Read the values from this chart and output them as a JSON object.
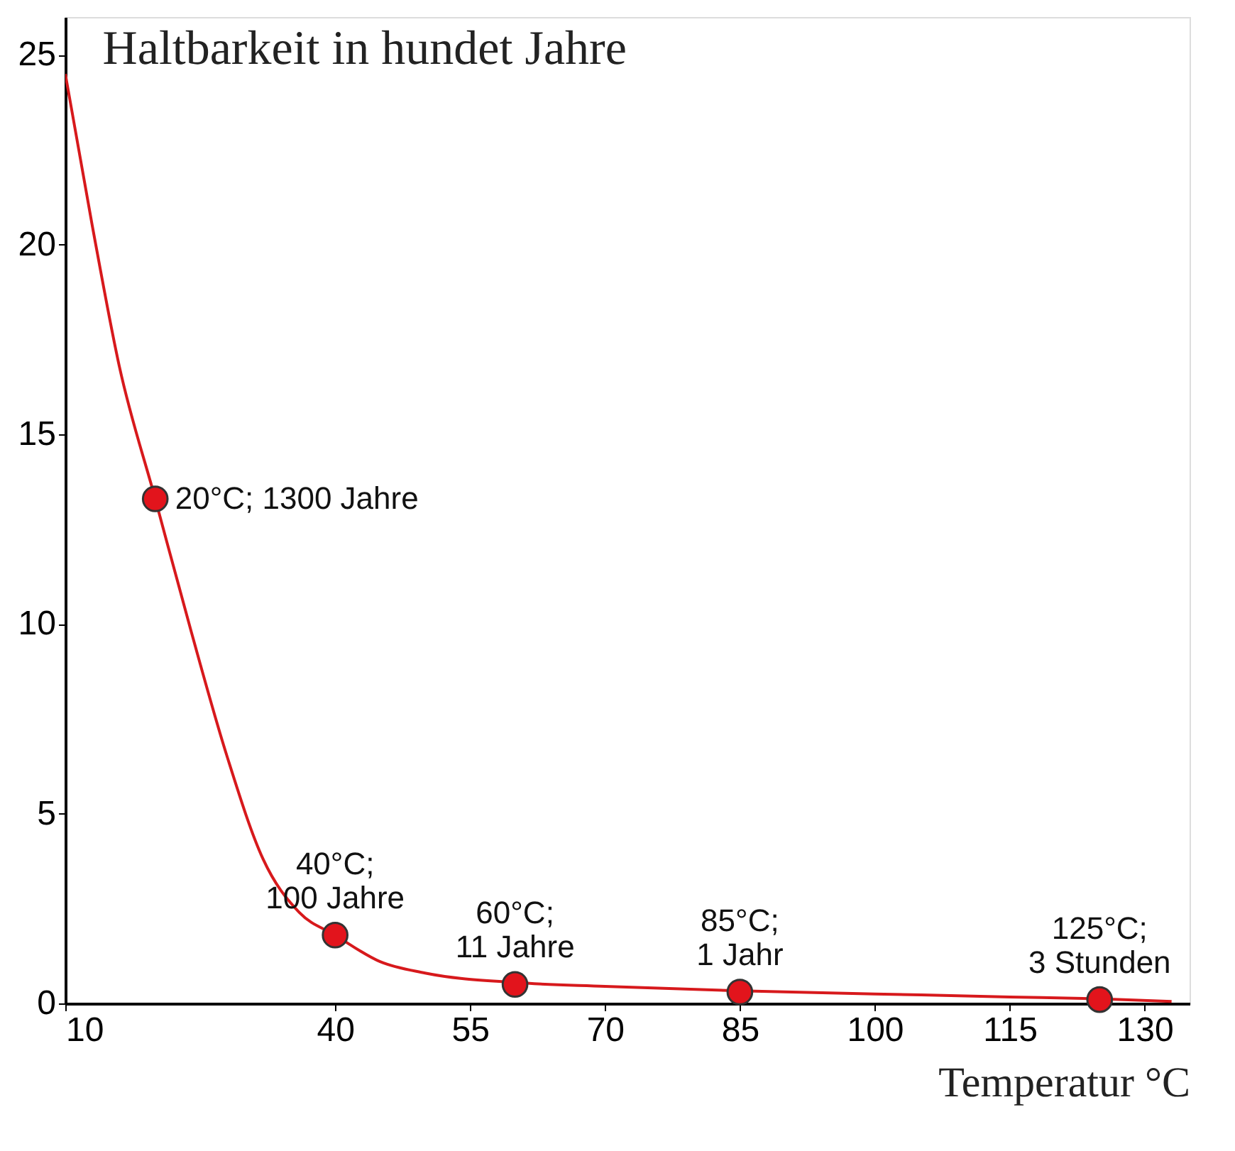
{
  "chart_data": {
    "type": "line",
    "title": "Haltbarkeit in hundet Jahre",
    "xlabel": "Temperatur °C",
    "xlim": [
      10,
      135
    ],
    "xticks": [
      10,
      40,
      55,
      70,
      85,
      100,
      115,
      130
    ],
    "ylim": [
      0,
      26
    ],
    "yticks": [
      0,
      5,
      10,
      15,
      20,
      25
    ],
    "grid": false,
    "series": [
      {
        "type": "line",
        "color": "#d7191c",
        "x": [
          10,
          13,
          16,
          20,
          24,
          28,
          32,
          36,
          40,
          45,
          50,
          60,
          70,
          85,
          100,
          115,
          125,
          133
        ],
        "values": [
          24.5,
          20.5,
          16.8,
          13.3,
          9.8,
          6.5,
          3.8,
          2.4,
          1.8,
          1.1,
          0.8,
          0.55,
          0.45,
          0.33,
          0.25,
          0.17,
          0.12,
          0.05
        ]
      },
      {
        "type": "scatter",
        "color": "#e2141c",
        "marker": "circle",
        "x": [
          20,
          40,
          60,
          85,
          125
        ],
        "values": [
          13.3,
          1.8,
          0.5,
          0.3,
          0.1
        ]
      }
    ],
    "annotations": [
      {
        "text": "20°C; 1300 Jahre",
        "x": 20,
        "y": 13.3
      },
      {
        "text": "40°C;\n100 Jahre",
        "x": 40,
        "y": 1.8
      },
      {
        "text": "60°C;\n11 Jahre",
        "x": 60,
        "y": 0.5
      },
      {
        "text": "85°C;\n1 Jahr",
        "x": 85,
        "y": 0.3
      },
      {
        "text": "125°C;\n3 Stunden",
        "x": 125,
        "y": 0.1
      }
    ]
  }
}
